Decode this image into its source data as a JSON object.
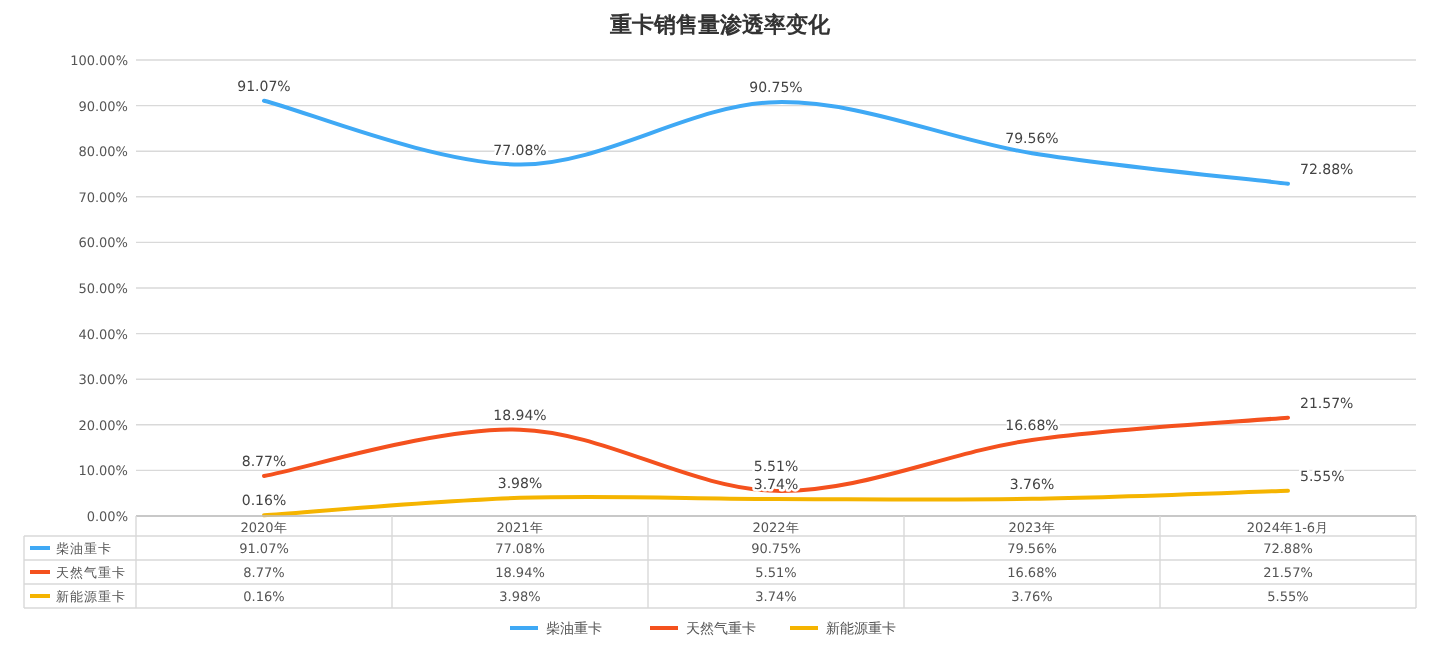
{
  "chart_data": {
    "type": "line",
    "title": "重卡销售量渗透率变化",
    "categories": [
      "2020年",
      "2021年",
      "2022年",
      "2023年",
      "2024年1-6月"
    ],
    "series": [
      {
        "name": "柴油重卡",
        "color": "#3fa9f5",
        "values": [
          91.07,
          77.08,
          90.75,
          79.56,
          72.88
        ],
        "value_labels": [
          "91.07%",
          "77.08%",
          "90.75%",
          "79.56%",
          "72.88%"
        ]
      },
      {
        "name": "天然气重卡",
        "color": "#f4511e",
        "values": [
          8.77,
          18.94,
          5.51,
          16.68,
          21.57
        ],
        "value_labels": [
          "8.77%",
          "18.94%",
          "5.51%",
          "16.68%",
          "21.57%"
        ]
      },
      {
        "name": "新能源重卡",
        "color": "#f5b400",
        "values": [
          0.16,
          3.98,
          3.74,
          3.76,
          5.55
        ],
        "value_labels": [
          "0.16%",
          "3.98%",
          "3.74%",
          "3.76%",
          "5.55%"
        ]
      }
    ],
    "ylim": [
      0,
      100
    ],
    "yticks": [
      {
        "value": 0,
        "label": "0.00%"
      },
      {
        "value": 10,
        "label": "10.00%"
      },
      {
        "value": 20,
        "label": "20.00%"
      },
      {
        "value": 30,
        "label": "30.00%"
      },
      {
        "value": 40,
        "label": "40.00%"
      },
      {
        "value": 50,
        "label": "50.00%"
      },
      {
        "value": 60,
        "label": "60.00%"
      },
      {
        "value": 70,
        "label": "70.00%"
      },
      {
        "value": 80,
        "label": "80.00%"
      },
      {
        "value": 90,
        "label": "90.00%"
      },
      {
        "value": 100,
        "label": "100.00%"
      }
    ],
    "grid": "y",
    "legend": "bottom",
    "marker": "none",
    "line_style": "solid"
  }
}
